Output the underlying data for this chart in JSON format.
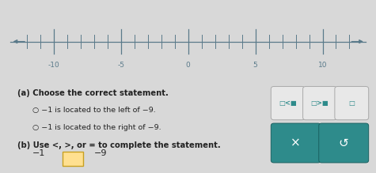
{
  "bg_color": "#d8d8d8",
  "number_line": {
    "xlim": [
      -13.5,
      13.5
    ],
    "ticks_major": [
      -10,
      -5,
      0,
      5,
      10
    ],
    "line_color": "#5a7a8a",
    "box_facecolor": "#f5f0ea",
    "box_edgecolor": "#aaaaaa"
  },
  "question_box": {
    "title_a": "(a) Choose the correct statement.",
    "option1": "○ −1 is located to the left of −9.",
    "option2": "○ −1 is located to the right of −9.",
    "title_b": "(b) Use <, >, or = to complete the statement.",
    "minus1": "−1",
    "minus9": "−9",
    "box_facecolor": "#ffffff",
    "box_edgecolor": "#aaaaaa",
    "text_color": "#222222",
    "blank_face": "#ffe090",
    "blank_edge": "#c8a020"
  },
  "buttons": {
    "panel_facecolor": "#cccccc",
    "panel_edgecolor": "#999999",
    "top_btn_face": "#e8e8e8",
    "top_btn_edge": "#aaaaaa",
    "teal": "#2e8b8b",
    "btn1_text": "□<■",
    "btn2_text": "□>■",
    "btn3_text": "□",
    "x_text": "×",
    "undo_text": "↺",
    "teal_btn_edge": "#1a6060"
  }
}
